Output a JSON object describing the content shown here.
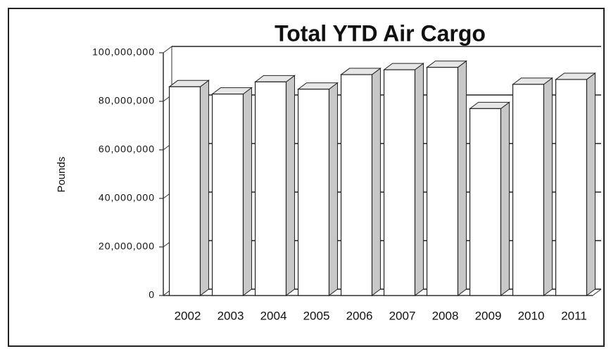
{
  "chart_data": {
    "type": "bar3d",
    "title": "Total YTD Air Cargo",
    "y_label": "Pounds",
    "categories": [
      "2002",
      "2003",
      "2004",
      "2005",
      "2006",
      "2007",
      "2008",
      "2009",
      "2010",
      "2011"
    ],
    "values": [
      86000000,
      83000000,
      88000000,
      85000000,
      91000000,
      93000000,
      94000000,
      77000000,
      87000000,
      89000000
    ],
    "color": "#ffffff",
    "ylim": [
      0,
      100000000
    ],
    "yticks": [
      0,
      {
        "value": 20000000,
        "label": "20,000,000"
      },
      {
        "value": 40000000,
        "label": "40,000,000"
      },
      {
        "value": 60000000,
        "label": "60,000,000"
      },
      {
        "value": 80000000,
        "label": "80,000,000"
      },
      {
        "value": 100000000,
        "label": "100,000,000"
      }
    ],
    "grid": true
  }
}
